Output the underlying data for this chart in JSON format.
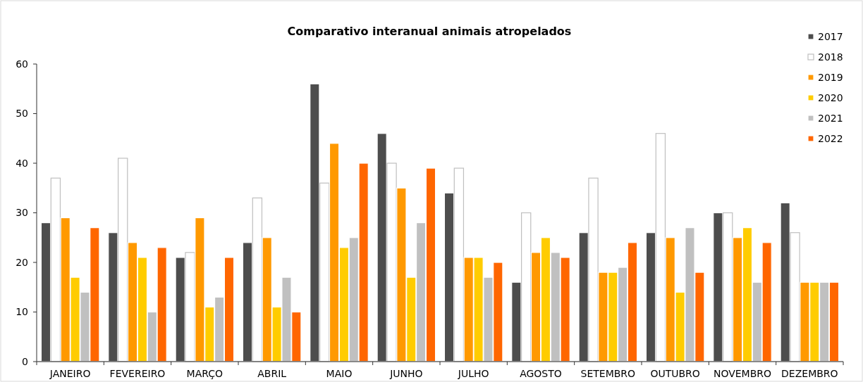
{
  "chart_data": {
    "type": "bar",
    "title": "Comparativo interanual animais atropelados",
    "categories": [
      "JANEIRO",
      "FEVEREIRO",
      "MARÇO",
      "ABRIL",
      "MAIO",
      "JUNHO",
      "JULHO",
      "AGOSTO",
      "SETEMBRO",
      "OUTUBRO",
      "NOVEMBRO",
      "DEZEMBRO"
    ],
    "series": [
      {
        "name": "2017",
        "color": "#4d4d4d",
        "values": [
          28,
          26,
          21,
          24,
          56,
          46,
          34,
          16,
          26,
          26,
          30,
          32
        ]
      },
      {
        "name": "2018",
        "color": "#ffffff",
        "values": [
          37,
          41,
          22,
          33,
          36,
          40,
          39,
          30,
          37,
          46,
          30,
          26
        ]
      },
      {
        "name": "2019",
        "color": "#ff9900",
        "values": [
          29,
          24,
          29,
          25,
          44,
          35,
          21,
          22,
          18,
          25,
          25,
          16
        ]
      },
      {
        "name": "2020",
        "color": "#ffcc00",
        "values": [
          17,
          21,
          11,
          11,
          23,
          17,
          21,
          25,
          18,
          14,
          27,
          16
        ]
      },
      {
        "name": "2021",
        "color": "#c0c0c0",
        "values": [
          14,
          10,
          13,
          17,
          25,
          28,
          17,
          22,
          19,
          27,
          16,
          16
        ]
      },
      {
        "name": "2022",
        "color": "#ff6600",
        "values": [
          27,
          23,
          21,
          10,
          40,
          39,
          20,
          21,
          24,
          18,
          24,
          16
        ]
      }
    ],
    "ylim": [
      0,
      60
    ],
    "yticks": [
      0,
      10,
      20,
      30,
      40,
      50,
      60
    ],
    "grid": false,
    "legend": "top right"
  }
}
